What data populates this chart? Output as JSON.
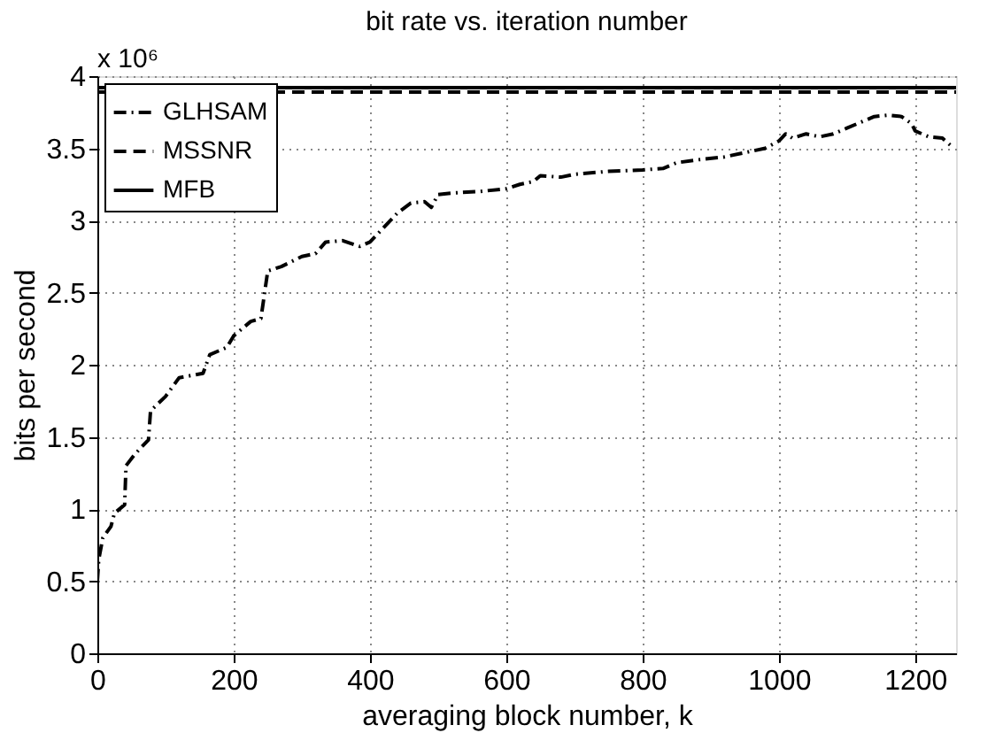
{
  "chart_data": {
    "type": "line",
    "title": "bit rate vs. iteration number",
    "xlabel": "averaging block number, k",
    "ylabel": "bits per second",
    "annotations": [
      "x 10⁶"
    ],
    "xlim": [
      0,
      1260
    ],
    "xticks": [
      0,
      200,
      400,
      600,
      800,
      1000,
      1200
    ],
    "ylim": [
      0,
      4
    ],
    "yticks": [
      0,
      0.5,
      1,
      1.5,
      2,
      2.5,
      3,
      3.5,
      4
    ],
    "grid": true,
    "legend": "top left",
    "series": [
      {
        "name": "GLHSAM",
        "color": "#000000",
        "line_style": "dashdot",
        "x": [
          0,
          2,
          8,
          20,
          25,
          40,
          42,
          55,
          75,
          78,
          100,
          120,
          155,
          165,
          180,
          190,
          200,
          225,
          240,
          250,
          270,
          300,
          320,
          335,
          360,
          385,
          400,
          420,
          440,
          460,
          480,
          490,
          500,
          520,
          560,
          600,
          620,
          640,
          650,
          680,
          700,
          750,
          800,
          830,
          850,
          880,
          920,
          950,
          980,
          1000,
          1010,
          1020,
          1040,
          1060,
          1080,
          1100,
          1140,
          1160,
          1180,
          1195,
          1200,
          1220,
          1240,
          1257
        ],
        "values": [
          0.5,
          0.65,
          0.8,
          0.88,
          0.97,
          1.03,
          1.3,
          1.38,
          1.48,
          1.68,
          1.78,
          1.91,
          1.94,
          2.07,
          2.1,
          2.12,
          2.2,
          2.3,
          2.32,
          2.65,
          2.68,
          2.75,
          2.77,
          2.85,
          2.86,
          2.82,
          2.85,
          2.95,
          3.05,
          3.12,
          3.13,
          3.09,
          3.18,
          3.19,
          3.2,
          3.22,
          3.25,
          3.27,
          3.31,
          3.3,
          3.32,
          3.34,
          3.35,
          3.36,
          3.4,
          3.42,
          3.44,
          3.47,
          3.5,
          3.55,
          3.6,
          3.57,
          3.6,
          3.58,
          3.6,
          3.64,
          3.72,
          3.73,
          3.72,
          3.67,
          3.62,
          3.58,
          3.57,
          3.5
        ]
      },
      {
        "name": "MSSNR",
        "color": "#000000",
        "line_style": "dashed",
        "x": [
          0,
          1260
        ],
        "values": [
          3.89,
          3.89
        ]
      },
      {
        "name": "MFB",
        "color": "#000000",
        "line_style": "solid",
        "x": [
          0,
          1260
        ],
        "values": [
          3.92,
          3.92
        ]
      }
    ]
  }
}
